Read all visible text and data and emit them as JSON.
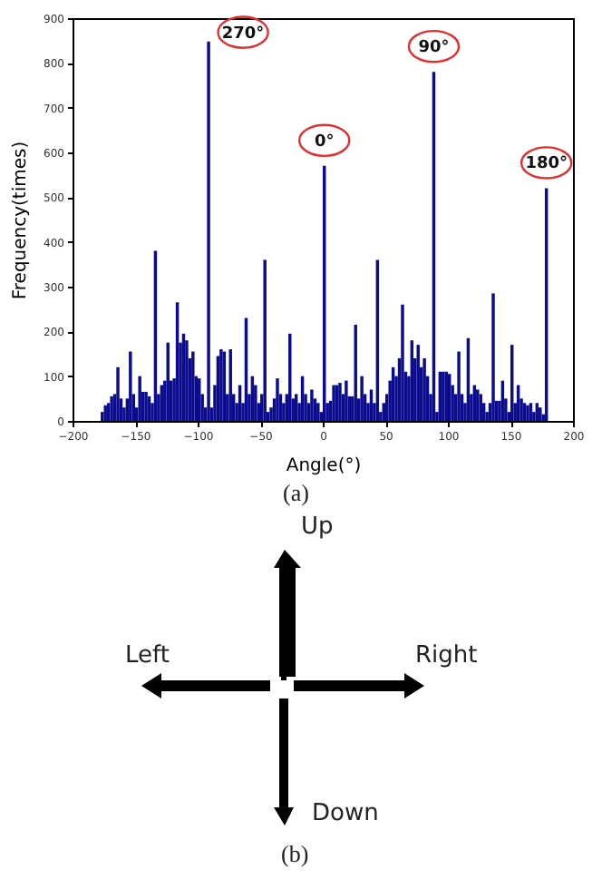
{
  "chart_data": {
    "type": "histogram",
    "xlabel": "Angle(°)",
    "ylabel": "Frequency(times)",
    "color": "#0b0b8e",
    "bins": [
      -180,
      -177.5,
      -175,
      -172.5,
      -170,
      -167.5,
      -165,
      -162.5,
      -160,
      -157.5,
      -155,
      -152.5,
      -150,
      -147.5,
      -145,
      -142.5,
      -140,
      -137.5,
      -135,
      -132.5,
      -130,
      -127.5,
      -125,
      -122.5,
      -120,
      -117.5,
      -115,
      -112.5,
      -110,
      -107.5,
      -105,
      -102.5,
      -100,
      -97.5,
      -95,
      -92.5,
      -90,
      -87.5,
      -85,
      -82.5,
      -80,
      -77.5,
      -75,
      -72.5,
      -70,
      -67.5,
      -65,
      -62.5,
      -60,
      -57.5,
      -55,
      -52.5,
      -50,
      -47.5,
      -45,
      -42.5,
      -40,
      -37.5,
      -35,
      -32.5,
      -30,
      -27.5,
      -25,
      -22.5,
      -20,
      -17.5,
      -15,
      -12.5,
      -10,
      -7.5,
      -5,
      -2.5,
      0,
      2.5,
      5,
      7.5,
      10,
      12.5,
      15,
      17.5,
      20,
      22.5,
      25,
      27.5,
      30,
      32.5,
      35,
      37.5,
      40,
      42.5,
      45,
      47.5,
      50,
      52.5,
      55,
      57.5,
      60,
      62.5,
      65,
      67.5,
      70,
      72.5,
      75,
      77.5,
      80,
      82.5,
      85,
      87.5,
      90,
      92.5,
      95,
      97.5,
      100,
      102.5,
      105,
      107.5,
      110,
      112.5,
      115,
      117.5,
      120,
      122.5,
      125,
      127.5,
      130,
      132.5,
      135,
      137.5,
      140,
      142.5,
      145,
      147.5,
      150,
      152.5,
      155,
      157.5,
      160,
      162.5,
      165,
      167.5,
      170,
      172.5,
      175,
      177.5,
      180
    ],
    "values": [
      0,
      20,
      35,
      40,
      55,
      60,
      120,
      50,
      30,
      50,
      155,
      60,
      30,
      100,
      65,
      65,
      55,
      40,
      380,
      60,
      80,
      90,
      175,
      90,
      95,
      265,
      175,
      195,
      180,
      140,
      155,
      100,
      95,
      60,
      30,
      848,
      30,
      80,
      145,
      160,
      155,
      60,
      160,
      60,
      40,
      80,
      40,
      230,
      60,
      100,
      80,
      40,
      60,
      360,
      20,
      30,
      50,
      95,
      60,
      40,
      60,
      195,
      50,
      60,
      40,
      100,
      60,
      40,
      70,
      50,
      40,
      20,
      570,
      40,
      45,
      80,
      80,
      85,
      60,
      90,
      55,
      55,
      215,
      50,
      100,
      60,
      40,
      70,
      40,
      360,
      20,
      40,
      60,
      90,
      120,
      100,
      140,
      260,
      110,
      100,
      180,
      140,
      170,
      120,
      140,
      100,
      60,
      780,
      20,
      110,
      110,
      110,
      105,
      80,
      60,
      155,
      60,
      40,
      185,
      60,
      80,
      70,
      60,
      40,
      20,
      40,
      285,
      45,
      45,
      90,
      50,
      20,
      170,
      40,
      80,
      50,
      40,
      35,
      40,
      20,
      40,
      30,
      15,
      520
    ],
    "xlim": [
      -200,
      200
    ],
    "xticks": [
      -200,
      -150,
      -100,
      -50,
      0,
      50,
      100,
      150,
      200
    ],
    "ylim": [
      0,
      900
    ],
    "yticks": [
      0,
      100,
      200,
      300,
      400,
      500,
      600,
      700,
      800,
      900
    ],
    "annotations": [
      {
        "text": "270°",
        "x": -91.25,
        "y": 848
      },
      {
        "text": "0°",
        "x": 1.25,
        "y": 570
      },
      {
        "text": "90°",
        "x": 88.75,
        "y": 780
      },
      {
        "text": "180°",
        "x": 178.75,
        "y": 520
      },
      "(a)",
      "Up",
      "Left",
      "Right",
      "Down",
      "(b)"
    ]
  }
}
